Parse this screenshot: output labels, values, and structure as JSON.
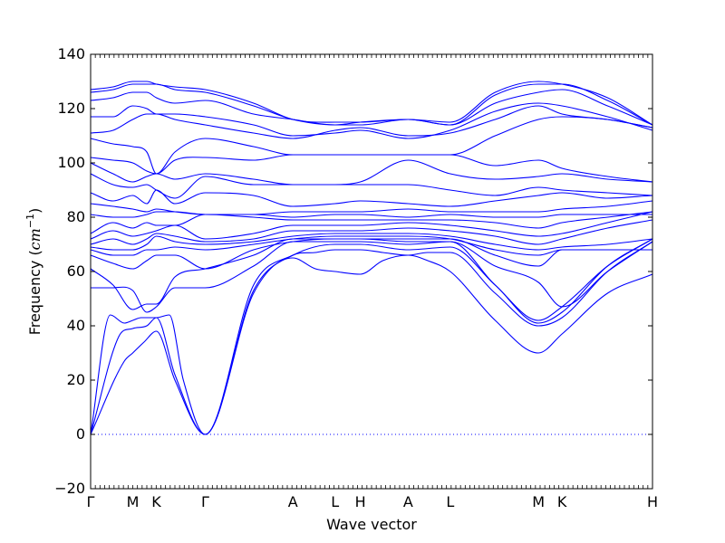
{
  "chart_data": {
    "type": "line",
    "xlabel": "Wave vector",
    "ylabel_prefix": "Frequency (",
    "ylabel_unit": "cm",
    "ylabel_exp": "−1",
    "ylabel_suffix": ")",
    "ylim": [
      -20,
      140
    ],
    "yticks": [
      -20,
      0,
      20,
      40,
      60,
      80,
      100,
      120,
      140
    ],
    "ytick_labels": [
      "−20",
      "0",
      "20",
      "40",
      "60",
      "80",
      "100",
      "120",
      "140"
    ],
    "xlim": [
      0,
      1
    ],
    "high_symmetry_points": [
      {
        "label": "Γ",
        "x": 0.0
      },
      {
        "label": "M",
        "x": 0.075
      },
      {
        "label": "K",
        "x": 0.117
      },
      {
        "label": "Γ",
        "x": 0.204
      },
      {
        "label": "A",
        "x": 0.36
      },
      {
        "label": "L",
        "x": 0.435
      },
      {
        "label": "H",
        "x": 0.48
      },
      {
        "label": "A",
        "x": 0.565
      },
      {
        "label": "L",
        "x": 0.64
      },
      {
        "label": "M",
        "x": 0.797
      },
      {
        "label": "K",
        "x": 0.839
      },
      {
        "label": "H",
        "x": 1.0
      }
    ],
    "zero_line": {
      "y": 0,
      "style": "dotted",
      "color": "#0000ff"
    },
    "series_color": "#0000ff",
    "grid": false,
    "legend": "none",
    "series": [
      {
        "x": [
          0.0,
          0.06,
          0.075,
          0.095,
          0.117,
          0.15,
          0.204,
          0.29,
          0.36,
          0.4,
          0.435,
          0.48,
          0.52,
          0.565,
          0.6,
          0.64,
          0.72,
          0.797,
          0.839,
          0.92,
          1.0
        ],
        "values": [
          0,
          27,
          30,
          34,
          38,
          20,
          0,
          52,
          65,
          61,
          60,
          59,
          64,
          66,
          64,
          60,
          42,
          30,
          37,
          52,
          59
        ]
      },
      {
        "x": [
          0.0,
          0.05,
          0.075,
          0.1,
          0.117,
          0.15,
          0.204,
          0.29,
          0.36,
          0.4,
          0.435,
          0.48,
          0.52,
          0.565,
          0.6,
          0.64,
          0.72,
          0.797,
          0.839,
          0.92,
          1.0
        ],
        "values": [
          0,
          36,
          39,
          40,
          43,
          22,
          0,
          53,
          66,
          67,
          68,
          68,
          67,
          66,
          67,
          67,
          52,
          40,
          43,
          60,
          71
        ]
      },
      {
        "x": [
          0.0,
          0.035,
          0.06,
          0.075,
          0.09,
          0.117,
          0.14,
          0.165,
          0.204,
          0.29,
          0.36,
          0.435,
          0.48,
          0.565,
          0.64,
          0.72,
          0.797,
          0.839,
          0.92,
          1.0
        ],
        "values": [
          0,
          44,
          41,
          42,
          43,
          43,
          44,
          20,
          0,
          55,
          66,
          70,
          70,
          68,
          69,
          55,
          41,
          45,
          62,
          72
        ]
      },
      {
        "x": [
          0.0,
          0.04,
          0.075,
          0.1,
          0.117,
          0.15,
          0.204,
          0.29,
          0.36,
          0.435,
          0.48,
          0.565,
          0.64,
          0.72,
          0.797,
          0.839,
          0.92,
          1.0
        ],
        "values": [
          54,
          54,
          53,
          45,
          47,
          54,
          54,
          62,
          71,
          71,
          71,
          70,
          71,
          55,
          42,
          47,
          62,
          72
        ]
      },
      {
        "x": [
          0.0,
          0.04,
          0.075,
          0.1,
          0.117,
          0.15,
          0.204,
          0.29,
          0.36,
          0.435,
          0.48,
          0.565,
          0.64,
          0.72,
          0.797,
          0.839,
          0.92,
          1.0
        ],
        "values": [
          61,
          55,
          46,
          48,
          48,
          58,
          61,
          66,
          72,
          72,
          72,
          71,
          71,
          62,
          56,
          47,
          60,
          71
        ]
      },
      {
        "x": [
          0.0,
          0.04,
          0.075,
          0.1,
          0.117,
          0.15,
          0.204,
          0.29,
          0.36,
          0.435,
          0.48,
          0.565,
          0.64,
          0.72,
          0.797,
          0.839,
          0.92,
          1.0
        ],
        "values": [
          66,
          63,
          61,
          64,
          66,
          66,
          61,
          68,
          71,
          72,
          72,
          72,
          72,
          66,
          62,
          68,
          68,
          68
        ]
      },
      {
        "x": [
          0.0,
          0.04,
          0.075,
          0.1,
          0.117,
          0.15,
          0.204,
          0.29,
          0.36,
          0.435,
          0.48,
          0.565,
          0.64,
          0.72,
          0.797,
          0.839,
          0.92,
          1.0
        ],
        "values": [
          68,
          66,
          66,
          68,
          68,
          69,
          68,
          70,
          72,
          73,
          73,
          73,
          72,
          68,
          66,
          68,
          68,
          68
        ]
      },
      {
        "x": [
          0.0,
          0.04,
          0.075,
          0.1,
          0.117,
          0.15,
          0.204,
          0.29,
          0.36,
          0.435,
          0.48,
          0.565,
          0.64,
          0.72,
          0.797,
          0.839,
          0.92,
          1.0
        ],
        "values": [
          69,
          68,
          68,
          70,
          73,
          71,
          70,
          71,
          73,
          74,
          74,
          74,
          73,
          70,
          68,
          69,
          70,
          72
        ]
      },
      {
        "x": [
          0.0,
          0.04,
          0.075,
          0.1,
          0.117,
          0.15,
          0.204,
          0.29,
          0.36,
          0.435,
          0.48,
          0.565,
          0.64,
          0.72,
          0.797,
          0.839,
          0.92,
          1.0
        ],
        "values": [
          70,
          72,
          70,
          72,
          74,
          73,
          71,
          72,
          75,
          75,
          75,
          76,
          75,
          73,
          70,
          72,
          76,
          79
        ]
      },
      {
        "x": [
          0.0,
          0.04,
          0.075,
          0.1,
          0.117,
          0.15,
          0.204,
          0.29,
          0.36,
          0.435,
          0.48,
          0.565,
          0.64,
          0.72,
          0.797,
          0.839,
          0.92,
          1.0
        ],
        "values": [
          72,
          75,
          73,
          74,
          75,
          77,
          72,
          74,
          77,
          77,
          77,
          78,
          77,
          75,
          73,
          74,
          78,
          82
        ]
      },
      {
        "x": [
          0.0,
          0.04,
          0.075,
          0.1,
          0.117,
          0.15,
          0.204,
          0.29,
          0.36,
          0.435,
          0.48,
          0.565,
          0.64,
          0.72,
          0.797,
          0.839,
          0.92,
          1.0
        ],
        "values": [
          74,
          78,
          76,
          78,
          77,
          77,
          81,
          80,
          79,
          79,
          79,
          79,
          79,
          78,
          76,
          78,
          80,
          82
        ]
      },
      {
        "x": [
          0.0,
          0.04,
          0.075,
          0.1,
          0.117,
          0.15,
          0.204,
          0.29,
          0.36,
          0.435,
          0.48,
          0.565,
          0.64,
          0.72,
          0.797,
          0.839,
          0.92,
          1.0
        ],
        "values": [
          81,
          80,
          80,
          81,
          82,
          82,
          81,
          81,
          80,
          81,
          81,
          80,
          81,
          80,
          80,
          81,
          81,
          81
        ]
      },
      {
        "x": [
          0.0,
          0.04,
          0.075,
          0.1,
          0.117,
          0.15,
          0.204,
          0.29,
          0.36,
          0.435,
          0.48,
          0.565,
          0.64,
          0.72,
          0.797,
          0.839,
          0.92,
          1.0
        ],
        "values": [
          85,
          84,
          83,
          82,
          83,
          82,
          81,
          81,
          82,
          82,
          82,
          83,
          82,
          82,
          82,
          83,
          84,
          86
        ]
      },
      {
        "x": [
          0.0,
          0.04,
          0.075,
          0.1,
          0.117,
          0.15,
          0.204,
          0.29,
          0.36,
          0.435,
          0.48,
          0.565,
          0.64,
          0.72,
          0.797,
          0.839,
          0.92,
          1.0
        ],
        "values": [
          89,
          86,
          88,
          85,
          90,
          85,
          89,
          88,
          84,
          85,
          86,
          85,
          84,
          86,
          88,
          89,
          87,
          88
        ]
      },
      {
        "x": [
          0.0,
          0.04,
          0.075,
          0.1,
          0.117,
          0.15,
          0.204,
          0.29,
          0.36,
          0.435,
          0.48,
          0.565,
          0.64,
          0.72,
          0.797,
          0.839,
          0.92,
          1.0
        ],
        "values": [
          96,
          92,
          91,
          92,
          90,
          87,
          95,
          92,
          92,
          92,
          92,
          92,
          90,
          88,
          91,
          90,
          89,
          88
        ]
      },
      {
        "x": [
          0.0,
          0.04,
          0.075,
          0.1,
          0.117,
          0.15,
          0.204,
          0.29,
          0.36,
          0.435,
          0.48,
          0.565,
          0.64,
          0.72,
          0.797,
          0.839,
          0.92,
          1.0
        ],
        "values": [
          100,
          96,
          93,
          95,
          96,
          94,
          96,
          94,
          92,
          92,
          93,
          101,
          96,
          94,
          95,
          96,
          94,
          93
        ]
      },
      {
        "x": [
          0.0,
          0.04,
          0.075,
          0.1,
          0.117,
          0.15,
          0.204,
          0.29,
          0.36,
          0.435,
          0.48,
          0.565,
          0.64,
          0.72,
          0.797,
          0.839,
          0.92,
          1.0
        ],
        "values": [
          102,
          101,
          100,
          97,
          96,
          101,
          102,
          101,
          103,
          103,
          103,
          103,
          103,
          99,
          101,
          98,
          95,
          93
        ]
      },
      {
        "x": [
          0.0,
          0.04,
          0.075,
          0.1,
          0.117,
          0.15,
          0.204,
          0.29,
          0.36,
          0.435,
          0.48,
          0.565,
          0.64,
          0.72,
          0.797,
          0.839,
          0.92,
          1.0
        ],
        "values": [
          109,
          107,
          106,
          104,
          96,
          104,
          109,
          106,
          103,
          103,
          103,
          103,
          103,
          110,
          116,
          117,
          116,
          113
        ]
      },
      {
        "x": [
          0.0,
          0.04,
          0.075,
          0.1,
          0.117,
          0.15,
          0.204,
          0.29,
          0.36,
          0.435,
          0.48,
          0.565,
          0.64,
          0.72,
          0.797,
          0.839,
          0.92,
          1.0
        ],
        "values": [
          111,
          112,
          116,
          118,
          118,
          116,
          114,
          111,
          109,
          112,
          113,
          110,
          111,
          116,
          121,
          118,
          116,
          113
        ]
      },
      {
        "x": [
          0.0,
          0.04,
          0.075,
          0.1,
          0.117,
          0.15,
          0.204,
          0.29,
          0.36,
          0.435,
          0.48,
          0.565,
          0.64,
          0.72,
          0.797,
          0.839,
          0.92,
          1.0
        ],
        "values": [
          117,
          117,
          121,
          120,
          118,
          118,
          117,
          114,
          110,
          111,
          112,
          109,
          112,
          119,
          122,
          121,
          117,
          112
        ]
      },
      {
        "x": [
          0.0,
          0.04,
          0.075,
          0.1,
          0.117,
          0.15,
          0.204,
          0.29,
          0.36,
          0.435,
          0.48,
          0.565,
          0.64,
          0.72,
          0.797,
          0.839,
          0.92,
          1.0
        ],
        "values": [
          123,
          124,
          126,
          126,
          124,
          122,
          123,
          118,
          116,
          114,
          114,
          116,
          114,
          122,
          126,
          127,
          121,
          114
        ]
      },
      {
        "x": [
          0.0,
          0.04,
          0.075,
          0.1,
          0.117,
          0.15,
          0.204,
          0.29,
          0.36,
          0.435,
          0.48,
          0.565,
          0.64,
          0.72,
          0.797,
          0.839,
          0.92,
          1.0
        ],
        "values": [
          126,
          127,
          129,
          129,
          129,
          127,
          126,
          121,
          116,
          114,
          115,
          116,
          114,
          125,
          129,
          129,
          123,
          114
        ]
      },
      {
        "x": [
          0.0,
          0.04,
          0.075,
          0.1,
          0.117,
          0.15,
          0.204,
          0.29,
          0.36,
          0.435,
          0.48,
          0.565,
          0.64,
          0.72,
          0.797,
          0.839,
          0.92,
          1.0
        ],
        "values": [
          127,
          128,
          130,
          130,
          129,
          128,
          127,
          122,
          116,
          115,
          115,
          116,
          115,
          126,
          130,
          129,
          124,
          114
        ]
      }
    ]
  }
}
